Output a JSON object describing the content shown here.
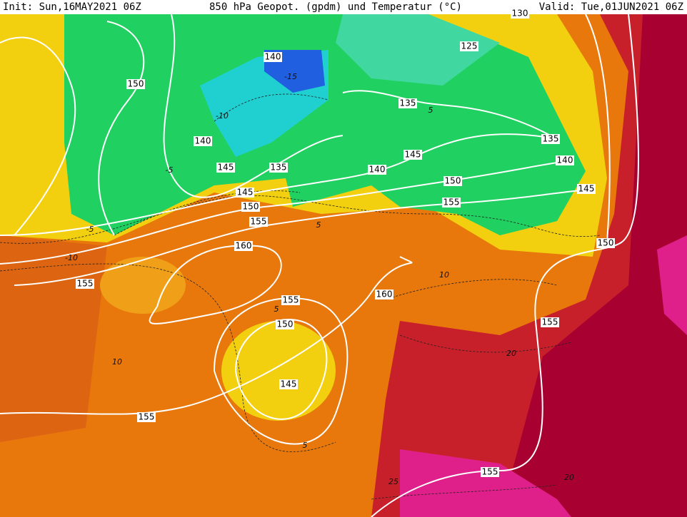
{
  "header": {
    "init": "Init: Sun,16MAY2021 06Z",
    "title": "850 hPa Geopot. (gpdm) und Temperatur (°C)",
    "valid": "Valid: Tue,01JUN2021 06Z"
  },
  "geopotential_labels": [
    150,
    140,
    140,
    145,
    135,
    135,
    125,
    145,
    140,
    150,
    155,
    135,
    140,
    145,
    145,
    150,
    155,
    160,
    155,
    160,
    155,
    150,
    145,
    150,
    155,
    155,
    155,
    130
  ],
  "temperature_labels": [
    -15,
    -10,
    -5,
    -5,
    -10,
    5,
    10,
    10,
    5,
    5,
    20,
    20,
    25,
    5
  ]
}
